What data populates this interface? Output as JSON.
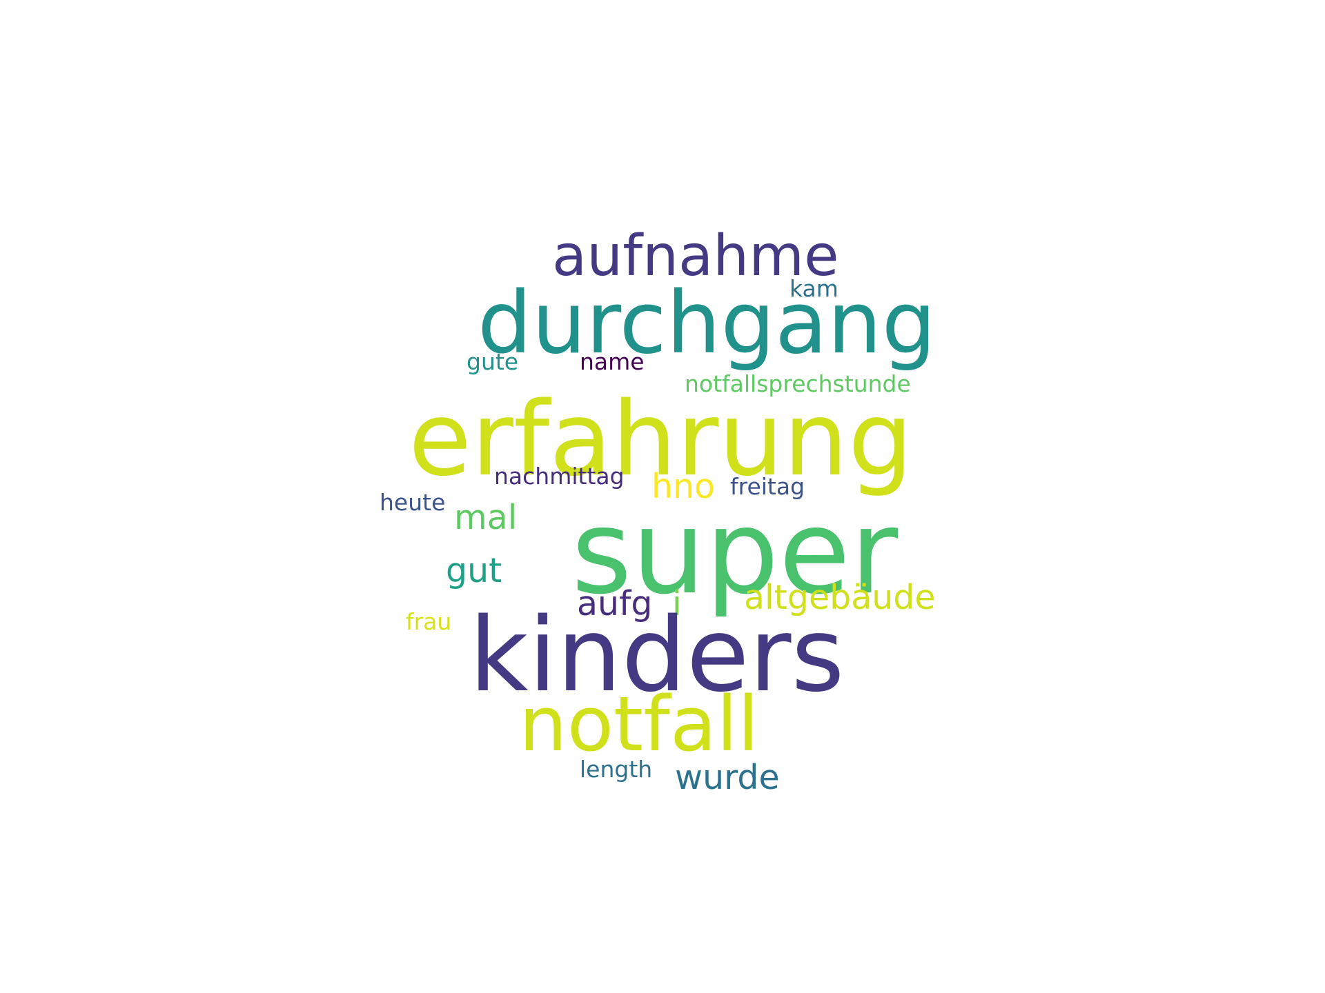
{
  "words": [
    {
      "key": "aufnahme",
      "text": "aufnahme",
      "color": "#443a83"
    },
    {
      "key": "kam",
      "text": "kam",
      "color": "#2c728e"
    },
    {
      "key": "durchgang",
      "text": "durchgang",
      "color": "#21918c"
    },
    {
      "key": "gute",
      "text": "gute",
      "color": "#21918c"
    },
    {
      "key": "name",
      "text": "name",
      "color": "#440154"
    },
    {
      "key": "notfallsprechstunde",
      "text": "notfallsprechstunde",
      "color": "#5ec962"
    },
    {
      "key": "erfahrung",
      "text": "erfahrung",
      "color": "#d0e11c"
    },
    {
      "key": "nachmittag",
      "text": "nachmittag",
      "color": "#472d7b"
    },
    {
      "key": "hno",
      "text": "hno",
      "color": "#fde725"
    },
    {
      "key": "freitag",
      "text": "freitag",
      "color": "#3b528b"
    },
    {
      "key": "heute",
      "text": "heute",
      "color": "#3b528b"
    },
    {
      "key": "mal",
      "text": "mal",
      "color": "#5ec962"
    },
    {
      "key": "super",
      "text": "super",
      "color": "#4ac16d"
    },
    {
      "key": "gut",
      "text": "gut",
      "color": "#1fa187"
    },
    {
      "key": "aufg",
      "text": "aufg",
      "color": "#472d7b"
    },
    {
      "key": "i",
      "text": "i",
      "color": "#7ad151"
    },
    {
      "key": "altgebaeude",
      "text": "altgebäude",
      "color": "#d0e11c"
    },
    {
      "key": "frau",
      "text": "frau",
      "color": "#d8e219"
    },
    {
      "key": "kinders",
      "text": "kinders",
      "color": "#443a83"
    },
    {
      "key": "notfall",
      "text": "notfall",
      "color": "#d0e11c"
    },
    {
      "key": "length",
      "text": "length",
      "color": "#2c728e"
    },
    {
      "key": "wurde",
      "text": "wurde",
      "color": "#2c728e"
    }
  ]
}
